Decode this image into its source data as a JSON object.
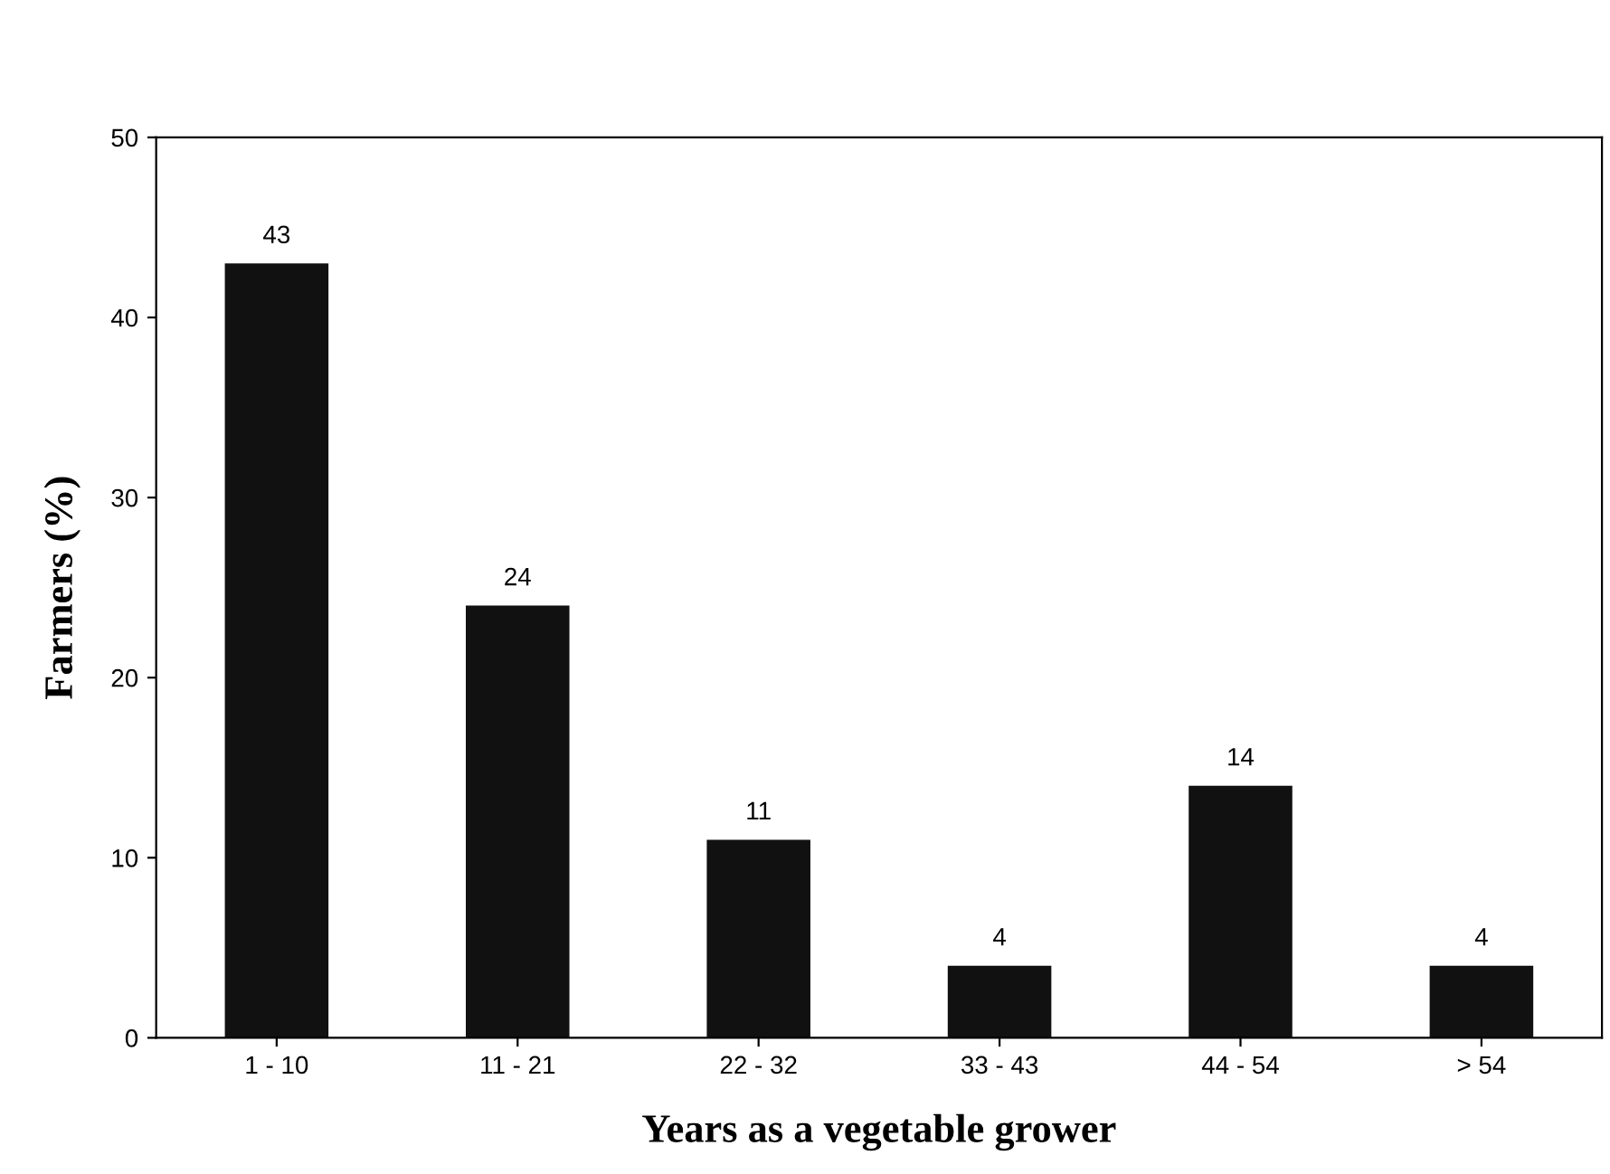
{
  "chart_data": {
    "type": "bar",
    "xlabel": "Years as a vegetable grower",
    "ylabel": "Farmers (%)",
    "categories": [
      "1 - 10",
      "11 - 21",
      "22 - 32",
      "33 - 43",
      "44 - 54",
      "> 54"
    ],
    "values": [
      43,
      24,
      11,
      4,
      14,
      4
    ],
    "color": "#111111",
    "ylim": [
      0,
      50
    ],
    "yticks": [
      0,
      10,
      20,
      30,
      40,
      50
    ],
    "grid": false,
    "data_labels": true
  }
}
